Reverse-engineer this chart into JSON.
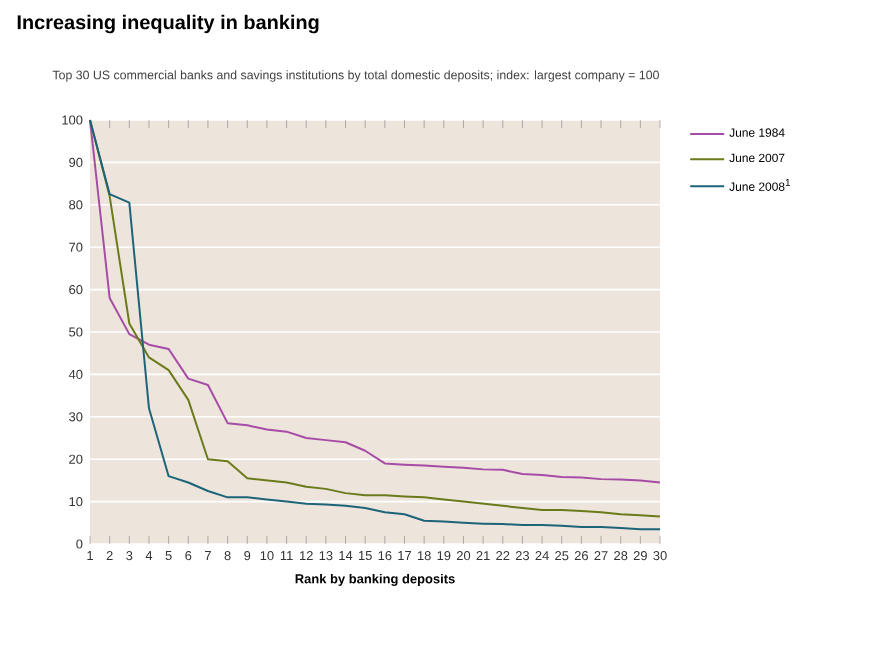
{
  "chart_data": {
    "type": "line",
    "title": "Increasing inequality in banking",
    "subtitle": "Top 30 US commercial banks and savings institutions by total domestic deposits; index: largest company = 100",
    "xlabel": "Rank by banking deposits",
    "x": [
      1,
      2,
      3,
      4,
      5,
      6,
      7,
      8,
      9,
      10,
      11,
      12,
      13,
      14,
      15,
      16,
      17,
      18,
      19,
      20,
      21,
      22,
      23,
      24,
      25,
      26,
      27,
      28,
      29,
      30
    ],
    "series": [
      {
        "name": "June 1984",
        "color": "#a64ca6",
        "values": [
          100,
          58,
          49.5,
          47,
          46,
          39,
          37.5,
          28.5,
          28,
          27,
          26.5,
          25,
          24.5,
          24,
          22,
          19,
          18.7,
          18.5,
          18.2,
          18,
          17.6,
          17.5,
          16.5,
          16.3,
          15.8,
          15.7,
          15.3,
          15.2,
          15,
          14.5
        ]
      },
      {
        "name": "June 2007",
        "color": "#6b7a1a",
        "values": [
          100,
          82,
          52,
          44,
          41,
          34,
          20,
          19.5,
          15.5,
          15,
          14.5,
          13.5,
          13,
          12,
          11.5,
          11.5,
          11.2,
          11,
          10.5,
          10,
          9.5,
          9,
          8.5,
          8,
          8,
          7.8,
          7.5,
          7,
          6.8,
          6.5
        ]
      },
      {
        "name": "June 2008$^{1}$",
        "color": "#1e6478",
        "values": [
          100,
          82.5,
          80.5,
          32,
          16,
          14.5,
          12.5,
          11,
          11,
          10.5,
          10,
          9.5,
          9.3,
          9,
          8.5,
          7.5,
          7,
          5.5,
          5.3,
          5,
          4.8,
          4.7,
          4.5,
          4.5,
          4.3,
          4,
          4,
          3.8,
          3.5,
          3.5
        ]
      }
    ],
    "xlim": [
      1,
      30
    ],
    "xticks": [
      1,
      2,
      3,
      4,
      5,
      6,
      7,
      8,
      9,
      10,
      11,
      12,
      13,
      14,
      15,
      16,
      17,
      18,
      19,
      20,
      21,
      22,
      23,
      24,
      25,
      26,
      27,
      28,
      29,
      30
    ],
    "ylim": [
      0,
      100
    ],
    "yticks": [
      0,
      10,
      20,
      30,
      40,
      50,
      60,
      70,
      80,
      90,
      100
    ],
    "grid": "y",
    "legend": "right",
    "marker": "none",
    "line_style": "solid"
  }
}
